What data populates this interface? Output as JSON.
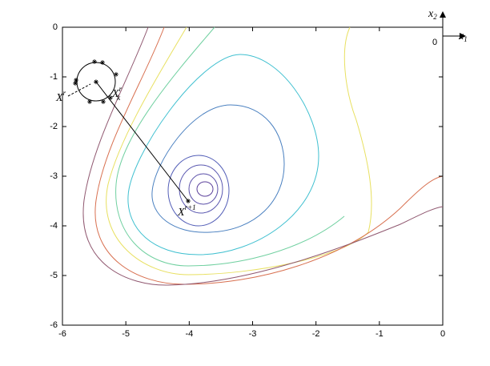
{
  "chart_data": {
    "type": "contour",
    "xlim": [
      -6,
      0
    ],
    "ylim": [
      -6,
      0
    ],
    "xticks": [
      -6,
      -5,
      -4,
      -3,
      -2,
      -1,
      0
    ],
    "yticks": [
      -6,
      -5,
      -4,
      -3,
      -2,
      -1,
      0
    ],
    "points": {
      "x": [
        -5.495,
        -5.368,
        -5.154,
        -5.785,
        -5.798,
        -5.571,
        -5.356,
        -5.242,
        -5.47,
        -4.017
      ],
      "y": [
        -0.694,
        -0.71,
        -0.95,
        -1.065,
        -1.129,
        -1.5,
        -1.5,
        -1.419,
        -1.1,
        -3.5
      ]
    },
    "line": {
      "x": [
        -5.47,
        -4.017
      ],
      "y": [
        -1.1,
        -3.5
      ]
    },
    "labels": [
      {
        "base": "X",
        "sup": "r"
      },
      {
        "base": "X",
        "sup": "r",
        "sub": "k"
      },
      {
        "base": "X",
        "sup": "r+1"
      }
    ],
    "inset": {
      "x1": {
        "base": "x",
        "sub": "1"
      },
      "x2": {
        "base": "x",
        "sub": "2"
      },
      "origin": "0"
    }
  }
}
